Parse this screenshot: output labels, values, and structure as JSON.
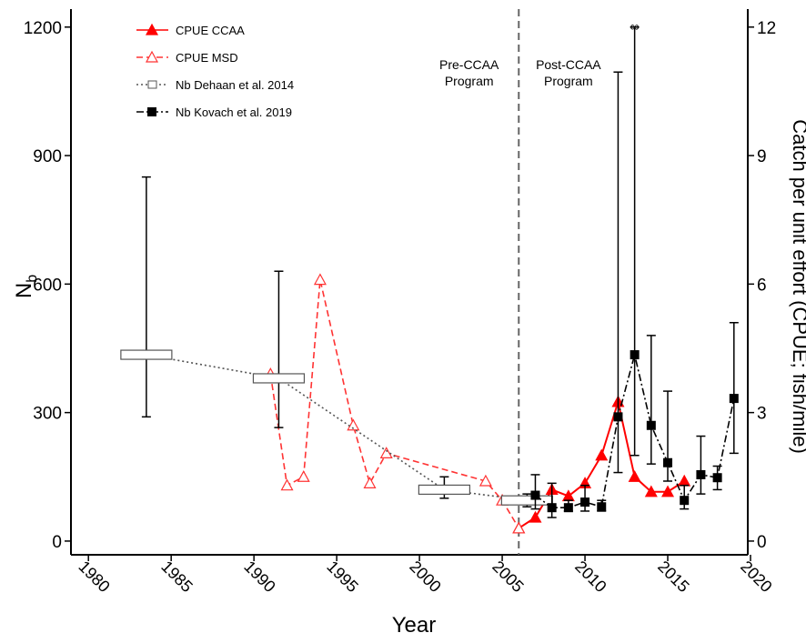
{
  "chart_data": {
    "type": "line",
    "xlabel": "Year",
    "ylabel": "N",
    "ylabel_subscript": "b",
    "y2label": "Catch per unit effort (CPUE; fish/mile)",
    "xlim": [
      1979,
      2020
    ],
    "xticks": [
      1980,
      1985,
      1990,
      1995,
      2000,
      2005,
      2010,
      2015,
      2020
    ],
    "ylim": [
      -32,
      1242
    ],
    "yticks": [
      0,
      300,
      600,
      900,
      1200
    ],
    "y2lim": [
      -0.32,
      12.42
    ],
    "y2ticks": [
      0,
      3,
      6,
      9,
      12
    ],
    "vline": 2006,
    "annotations": [
      {
        "text": "Pre-CCAA",
        "text2": "Program",
        "x": 2003
      },
      {
        "text": "Post-CCAA",
        "text2": "Program",
        "x": 2009
      },
      {
        "text": "∞",
        "x": 2013,
        "y": 1200
      }
    ],
    "legend": "top-left",
    "series": [
      {
        "name": "CPUE CCAA",
        "color": "#ff0000",
        "axis": "y2",
        "style": "solid",
        "marker": "filled-triangle",
        "x": [
          2006,
          2007,
          2008,
          2009,
          2010,
          2011,
          2012,
          2013,
          2014,
          2015,
          2016
        ],
        "values": [
          0.3,
          0.55,
          1.2,
          1.05,
          1.35,
          2.0,
          3.25,
          1.5,
          1.15,
          1.15,
          1.4
        ]
      },
      {
        "name": "CPUE MSD",
        "color": "#ff3333",
        "axis": "y2",
        "style": "dashed",
        "marker": "open-triangle",
        "x": [
          1991,
          1992,
          1993,
          1994,
          1996,
          1997,
          1998,
          2004,
          2005,
          2006
        ],
        "values": [
          3.9,
          1.3,
          1.5,
          6.1,
          2.7,
          1.35,
          2.05,
          1.4,
          0.95,
          0.3
        ]
      },
      {
        "name": "Nb Dehaan et al. 2014",
        "color": "#555555",
        "style": "dotted",
        "marker": "open-rect",
        "x": [
          1983.5,
          1991.5,
          2001.5,
          2006.5
        ],
        "values": [
          435,
          380,
          120,
          95
        ],
        "low": [
          290,
          265,
          100,
          80
        ],
        "high": [
          850,
          630,
          150,
          110
        ]
      },
      {
        "name": "Nb Kovach et al. 2019",
        "color": "#000000",
        "style": "dashdot",
        "marker": "filled-square",
        "x": [
          2007,
          2008,
          2009,
          2010,
          2011,
          2012,
          2013,
          2014,
          2015,
          2016,
          2017,
          2018,
          2019
        ],
        "values": [
          107,
          78,
          78,
          91,
          80,
          290,
          435,
          270,
          183,
          95,
          155,
          148,
          333
        ],
        "low": [
          75,
          55,
          70,
          70,
          70,
          160,
          200,
          180,
          140,
          75,
          110,
          120,
          205
        ],
        "high": [
          155,
          135,
          95,
          130,
          95,
          1095,
          1200,
          480,
          350,
          130,
          245,
          175,
          510
        ]
      }
    ]
  }
}
